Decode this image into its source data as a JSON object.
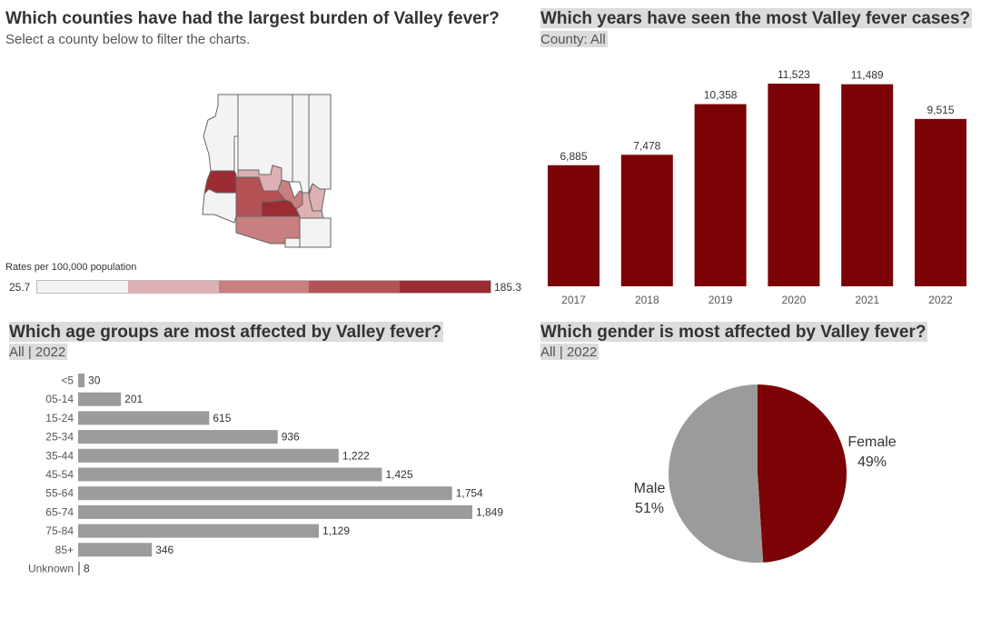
{
  "map_panel": {
    "title": "Which counties have had the largest burden of Valley fever?",
    "subtitle": "Select a county below to filter the charts.",
    "legend": {
      "title": "Rates per 100,000 population",
      "min": "25.7",
      "max": "185.3",
      "colors": [
        "#f3f3f3",
        "#ddb1b3",
        "#c97e80",
        "#b55256",
        "#9d2b33"
      ]
    }
  },
  "years_panel": {
    "title": "Which years have seen the most Valley fever cases?",
    "subtitle": "County: All"
  },
  "age_panel": {
    "title": "Which age groups are most affected by Valley fever?",
    "subtitle": "All | 2022"
  },
  "gender_panel": {
    "title": "Which gender is most affected by Valley fever?",
    "subtitle": "All | 2022"
  },
  "colors": {
    "bar_dark": "#7b0205",
    "bar_gray": "#9b9b9b",
    "map_gray": "#f3f3f3"
  },
  "chart_data": [
    {
      "type": "bar",
      "categories": [
        "2017",
        "2018",
        "2019",
        "2020",
        "2021",
        "2022"
      ],
      "values": [
        6885,
        7478,
        10358,
        11523,
        11489,
        9515
      ],
      "labels": [
        "6,885",
        "7,478",
        "10,358",
        "11,523",
        "11,489",
        "9,515"
      ],
      "title": "Which years have seen the most Valley fever cases?",
      "ylim": [
        0,
        12000
      ]
    },
    {
      "type": "bar",
      "orientation": "horizontal",
      "categories": [
        "<5",
        "05-14",
        "15-24",
        "25-34",
        "35-44",
        "45-54",
        "55-64",
        "65-74",
        "75-84",
        "85+",
        "Unknown"
      ],
      "values": [
        30,
        201,
        615,
        936,
        1222,
        1425,
        1754,
        1849,
        1129,
        346,
        8
      ],
      "labels": [
        "30",
        "201",
        "615",
        "936",
        "1,222",
        "1,425",
        "1,754",
        "1,849",
        "1,129",
        "346",
        "8"
      ],
      "title": "Which age groups are most affected by Valley fever?"
    },
    {
      "type": "pie",
      "categories": [
        "Female",
        "Male"
      ],
      "values": [
        49,
        51
      ],
      "labels": [
        "49%",
        "51%"
      ],
      "title": "Which gender is most affected by Valley fever?"
    }
  ]
}
